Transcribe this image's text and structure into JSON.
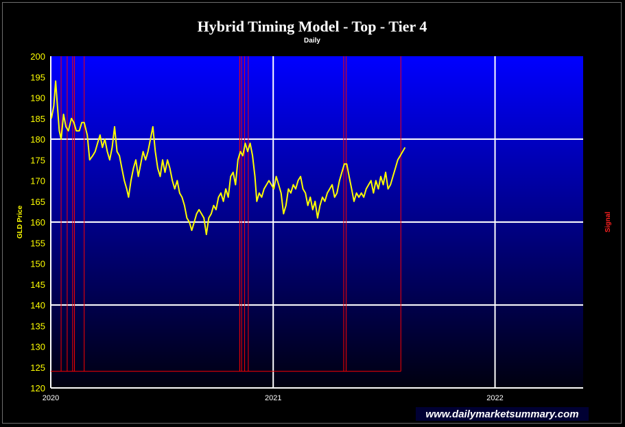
{
  "chart_data": {
    "type": "line",
    "title": "Hybrid Timing Model - Top - Tier 4",
    "subtitle": "Daily",
    "ylabel": "GLD Price",
    "y2label": "Signal",
    "ylim": [
      120,
      200
    ],
    "yticks": [
      200,
      195,
      190,
      185,
      180,
      175,
      170,
      165,
      160,
      155,
      150,
      145,
      140,
      135,
      130,
      125,
      120
    ],
    "xlim": [
      "2020-01-01",
      "2022-05-26"
    ],
    "xticks": [
      {
        "date": "2020-01-01",
        "label": "2020"
      },
      {
        "date": "2021-01-01",
        "label": "2021"
      },
      {
        "date": "2022-01-01",
        "label": "2022"
      }
    ],
    "grid": true,
    "watermark": "www.dailymarketsummary.com",
    "colors": {
      "price_line": "#ffff00",
      "signal_line": "#ff0000",
      "grid": "#ffffff",
      "plot_top": "#0000ff",
      "plot_bottom": "#00000f"
    },
    "series": [
      {
        "name": "GLD Price",
        "axis": "left",
        "points": [
          [
            "2020-01-02",
            185
          ],
          [
            "2020-01-06",
            188
          ],
          [
            "2020-01-09",
            194
          ],
          [
            "2020-01-12",
            188
          ],
          [
            "2020-01-15",
            182
          ],
          [
            "2020-01-18",
            180
          ],
          [
            "2020-01-22",
            186
          ],
          [
            "2020-01-26",
            183
          ],
          [
            "2020-01-30",
            182
          ],
          [
            "2020-02-04",
            185
          ],
          [
            "2020-02-08",
            184
          ],
          [
            "2020-02-12",
            182
          ],
          [
            "2020-02-17",
            182
          ],
          [
            "2020-02-21",
            184
          ],
          [
            "2020-02-25",
            184
          ],
          [
            "2020-03-01",
            181
          ],
          [
            "2020-03-05",
            175
          ],
          [
            "2020-03-10",
            176
          ],
          [
            "2020-03-14",
            177
          ],
          [
            "2020-03-18",
            179
          ],
          [
            "2020-03-22",
            181
          ],
          [
            "2020-03-26",
            178
          ],
          [
            "2020-03-30",
            180
          ],
          [
            "2020-04-03",
            177
          ],
          [
            "2020-04-07",
            175
          ],
          [
            "2020-04-11",
            178
          ],
          [
            "2020-04-15",
            183
          ],
          [
            "2020-04-19",
            177
          ],
          [
            "2020-04-23",
            176
          ],
          [
            "2020-04-27",
            173
          ],
          [
            "2020-05-01",
            170
          ],
          [
            "2020-05-05",
            168
          ],
          [
            "2020-05-08",
            166
          ],
          [
            "2020-05-12",
            170
          ],
          [
            "2020-05-16",
            173
          ],
          [
            "2020-05-20",
            175
          ],
          [
            "2020-05-24",
            171
          ],
          [
            "2020-05-28",
            174
          ],
          [
            "2020-06-01",
            177
          ],
          [
            "2020-06-05",
            175
          ],
          [
            "2020-06-09",
            177
          ],
          [
            "2020-06-13",
            180
          ],
          [
            "2020-06-17",
            183
          ],
          [
            "2020-06-21",
            177
          ],
          [
            "2020-06-25",
            173
          ],
          [
            "2020-06-29",
            171
          ],
          [
            "2020-07-03",
            175
          ],
          [
            "2020-07-07",
            172
          ],
          [
            "2020-07-11",
            175
          ],
          [
            "2020-07-15",
            173
          ],
          [
            "2020-07-19",
            170
          ],
          [
            "2020-07-23",
            168
          ],
          [
            "2020-07-27",
            170
          ],
          [
            "2020-07-31",
            167
          ],
          [
            "2020-08-04",
            166
          ],
          [
            "2020-08-08",
            164
          ],
          [
            "2020-08-12",
            161
          ],
          [
            "2020-08-16",
            160
          ],
          [
            "2020-08-20",
            158
          ],
          [
            "2020-08-24",
            160
          ],
          [
            "2020-08-28",
            162
          ],
          [
            "2020-09-01",
            163
          ],
          [
            "2020-09-05",
            162
          ],
          [
            "2020-09-09",
            161
          ],
          [
            "2020-09-13",
            157
          ],
          [
            "2020-09-17",
            161
          ],
          [
            "2020-09-21",
            162
          ],
          [
            "2020-09-25",
            164
          ],
          [
            "2020-09-29",
            163
          ],
          [
            "2020-10-03",
            166
          ],
          [
            "2020-10-07",
            167
          ],
          [
            "2020-10-11",
            165
          ],
          [
            "2020-10-15",
            168
          ],
          [
            "2020-10-19",
            166
          ],
          [
            "2020-10-23",
            171
          ],
          [
            "2020-10-27",
            172
          ],
          [
            "2020-10-31",
            169
          ],
          [
            "2020-11-04",
            175
          ],
          [
            "2020-11-08",
            177
          ],
          [
            "2020-11-12",
            176
          ],
          [
            "2020-11-16",
            179
          ],
          [
            "2020-11-20",
            177
          ],
          [
            "2020-11-24",
            179
          ],
          [
            "2020-11-28",
            176
          ],
          [
            "2020-12-02",
            171
          ],
          [
            "2020-12-05",
            165
          ],
          [
            "2020-12-09",
            167
          ],
          [
            "2020-12-13",
            166
          ],
          [
            "2020-12-17",
            168
          ],
          [
            "2020-12-21",
            169
          ],
          [
            "2020-12-25",
            170
          ],
          [
            "2020-12-29",
            169
          ],
          [
            "2021-01-02",
            168
          ],
          [
            "2021-01-06",
            171
          ],
          [
            "2021-01-10",
            169
          ],
          [
            "2021-01-14",
            167
          ],
          [
            "2021-01-18",
            162
          ],
          [
            "2021-01-22",
            164
          ],
          [
            "2021-01-26",
            168
          ],
          [
            "2021-01-30",
            167
          ],
          [
            "2021-02-03",
            169
          ],
          [
            "2021-02-07",
            168
          ],
          [
            "2021-02-11",
            170
          ],
          [
            "2021-02-15",
            171
          ],
          [
            "2021-02-19",
            168
          ],
          [
            "2021-02-23",
            167
          ],
          [
            "2021-02-27",
            164
          ],
          [
            "2021-03-03",
            166
          ],
          [
            "2021-03-07",
            163
          ],
          [
            "2021-03-11",
            165
          ],
          [
            "2021-03-15",
            161
          ],
          [
            "2021-03-19",
            164
          ],
          [
            "2021-03-23",
            166
          ],
          [
            "2021-03-27",
            165
          ],
          [
            "2021-03-31",
            167
          ],
          [
            "2021-04-04",
            168
          ],
          [
            "2021-04-08",
            169
          ],
          [
            "2021-04-12",
            166
          ],
          [
            "2021-04-16",
            167
          ],
          [
            "2021-04-20",
            170
          ],
          [
            "2021-04-24",
            172
          ],
          [
            "2021-04-28",
            174
          ],
          [
            "2021-05-02",
            174
          ],
          [
            "2021-05-06",
            171
          ],
          [
            "2021-05-10",
            168
          ],
          [
            "2021-05-14",
            165
          ],
          [
            "2021-05-18",
            167
          ],
          [
            "2021-05-22",
            166
          ],
          [
            "2021-05-26",
            167
          ],
          [
            "2021-05-30",
            166
          ],
          [
            "2021-06-03",
            168
          ],
          [
            "2021-06-07",
            169
          ],
          [
            "2021-06-11",
            170
          ],
          [
            "2021-06-15",
            167
          ],
          [
            "2021-06-19",
            170
          ],
          [
            "2021-06-23",
            168
          ],
          [
            "2021-06-27",
            171
          ],
          [
            "2021-07-01",
            169
          ],
          [
            "2021-07-05",
            172
          ],
          [
            "2021-07-09",
            168
          ],
          [
            "2021-07-13",
            169
          ],
          [
            "2021-07-17",
            171
          ],
          [
            "2021-07-21",
            173
          ],
          [
            "2021-07-25",
            175
          ],
          [
            "2021-07-29",
            176
          ],
          [
            "2021-08-02",
            177
          ],
          [
            "2021-08-06",
            178
          ]
        ]
      },
      {
        "name": "Signal",
        "axis": "right",
        "baseline": 124,
        "spikes": [
          "2020-01-18",
          "2020-01-28",
          "2020-02-06",
          "2020-02-09",
          "2020-02-25",
          "2020-11-07",
          "2020-11-10",
          "2020-11-15",
          "2020-11-21",
          "2021-04-27",
          "2021-05-01",
          "2021-07-30"
        ]
      }
    ]
  }
}
